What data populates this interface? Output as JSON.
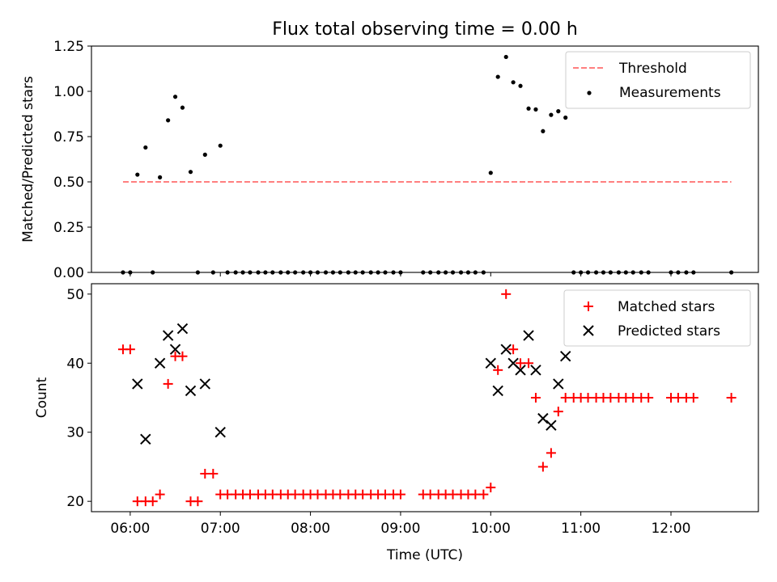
{
  "chart_data": [
    {
      "type": "scatter",
      "title": "Flux total observing time = 0.00 h",
      "ylabel": "Matched/Predicted stars",
      "xlabel": "",
      "xlim": [
        5.57,
        12.97
      ],
      "ylim": [
        0,
        1.25
      ],
      "x_ticks": [
        6,
        7,
        8,
        9,
        10,
        11,
        12
      ],
      "y_ticks": [
        0,
        0.25,
        0.5,
        0.75,
        1.0,
        1.25
      ],
      "y_tick_labels": [
        "0.00",
        "0.25",
        "0.50",
        "0.75",
        "1.00",
        "1.25"
      ],
      "legend_position": "top-right",
      "grid": false,
      "threshold": {
        "name": "Threshold",
        "y": 0.5,
        "x_range": [
          5.92,
          12.67
        ],
        "color": "#ff7f7f"
      },
      "measurements_name": "Measurements",
      "measurement_color": "#000000",
      "nonzero_points": [
        {
          "x": 6.08,
          "y": 0.54
        },
        {
          "x": 6.17,
          "y": 0.69
        },
        {
          "x": 6.33,
          "y": 0.525
        },
        {
          "x": 6.42,
          "y": 0.84
        },
        {
          "x": 6.5,
          "y": 0.97
        },
        {
          "x": 6.58,
          "y": 0.91
        },
        {
          "x": 6.67,
          "y": 0.555
        },
        {
          "x": 6.83,
          "y": 0.65
        },
        {
          "x": 7.0,
          "y": 0.7
        },
        {
          "x": 10.0,
          "y": 0.55
        },
        {
          "x": 10.08,
          "y": 1.08
        },
        {
          "x": 10.17,
          "y": 1.19
        },
        {
          "x": 10.25,
          "y": 1.05
        },
        {
          "x": 10.33,
          "y": 1.03
        },
        {
          "x": 10.42,
          "y": 0.905
        },
        {
          "x": 10.5,
          "y": 0.9
        },
        {
          "x": 10.58,
          "y": 0.78
        },
        {
          "x": 10.67,
          "y": 0.87
        },
        {
          "x": 10.75,
          "y": 0.89
        },
        {
          "x": 10.83,
          "y": 0.855
        }
      ],
      "zero_x": [
        5.92,
        6.0,
        6.25,
        6.75,
        6.92,
        7.08,
        7.17,
        7.25,
        7.33,
        7.42,
        7.5,
        7.58,
        7.67,
        7.75,
        7.83,
        7.92,
        8.0,
        8.08,
        8.17,
        8.25,
        8.33,
        8.42,
        8.5,
        8.58,
        8.67,
        8.75,
        8.83,
        8.92,
        9.0,
        9.25,
        9.33,
        9.42,
        9.5,
        9.58,
        9.67,
        9.75,
        9.83,
        9.92,
        10.92,
        11.0,
        11.08,
        11.17,
        11.25,
        11.33,
        11.42,
        11.5,
        11.58,
        11.67,
        11.75,
        12.0,
        12.08,
        12.17,
        12.25,
        12.67
      ]
    },
    {
      "type": "scatter",
      "xlabel": "Time (UTC)",
      "ylabel": "Count",
      "xlim": [
        5.57,
        12.97
      ],
      "ylim": [
        18.5,
        51.5
      ],
      "x_ticks": [
        6,
        7,
        8,
        9,
        10,
        11,
        12
      ],
      "x_tick_labels": [
        "06:00",
        "07:00",
        "08:00",
        "09:00",
        "10:00",
        "11:00",
        "12:00"
      ],
      "y_ticks": [
        20,
        30,
        40,
        50
      ],
      "legend_position": "top-right",
      "grid": false,
      "series": [
        {
          "name": "Matched stars",
          "marker": "plus",
          "color": "#ff0000",
          "points": [
            {
              "x": 5.92,
              "y": 42
            },
            {
              "x": 6.0,
              "y": 42
            },
            {
              "x": 6.08,
              "y": 20
            },
            {
              "x": 6.17,
              "y": 20
            },
            {
              "x": 6.25,
              "y": 20
            },
            {
              "x": 6.33,
              "y": 21
            },
            {
              "x": 6.42,
              "y": 37
            },
            {
              "x": 6.5,
              "y": 41
            },
            {
              "x": 6.58,
              "y": 41
            },
            {
              "x": 6.67,
              "y": 20
            },
            {
              "x": 6.75,
              "y": 20
            },
            {
              "x": 6.83,
              "y": 24
            },
            {
              "x": 6.92,
              "y": 24
            },
            {
              "x": 7.0,
              "y": 21
            },
            {
              "x": 7.08,
              "y": 21
            },
            {
              "x": 7.17,
              "y": 21
            },
            {
              "x": 7.25,
              "y": 21
            },
            {
              "x": 7.33,
              "y": 21
            },
            {
              "x": 7.42,
              "y": 21
            },
            {
              "x": 7.5,
              "y": 21
            },
            {
              "x": 7.58,
              "y": 21
            },
            {
              "x": 7.67,
              "y": 21
            },
            {
              "x": 7.75,
              "y": 21
            },
            {
              "x": 7.83,
              "y": 21
            },
            {
              "x": 7.92,
              "y": 21
            },
            {
              "x": 8.0,
              "y": 21
            },
            {
              "x": 8.08,
              "y": 21
            },
            {
              "x": 8.17,
              "y": 21
            },
            {
              "x": 8.25,
              "y": 21
            },
            {
              "x": 8.33,
              "y": 21
            },
            {
              "x": 8.42,
              "y": 21
            },
            {
              "x": 8.5,
              "y": 21
            },
            {
              "x": 8.58,
              "y": 21
            },
            {
              "x": 8.67,
              "y": 21
            },
            {
              "x": 8.75,
              "y": 21
            },
            {
              "x": 8.83,
              "y": 21
            },
            {
              "x": 8.92,
              "y": 21
            },
            {
              "x": 9.0,
              "y": 21
            },
            {
              "x": 9.25,
              "y": 21
            },
            {
              "x": 9.33,
              "y": 21
            },
            {
              "x": 9.42,
              "y": 21
            },
            {
              "x": 9.5,
              "y": 21
            },
            {
              "x": 9.58,
              "y": 21
            },
            {
              "x": 9.67,
              "y": 21
            },
            {
              "x": 9.75,
              "y": 21
            },
            {
              "x": 9.83,
              "y": 21
            },
            {
              "x": 9.92,
              "y": 21
            },
            {
              "x": 10.0,
              "y": 22
            },
            {
              "x": 10.08,
              "y": 39
            },
            {
              "x": 10.17,
              "y": 50
            },
            {
              "x": 10.25,
              "y": 42
            },
            {
              "x": 10.33,
              "y": 40
            },
            {
              "x": 10.42,
              "y": 40
            },
            {
              "x": 10.5,
              "y": 35
            },
            {
              "x": 10.58,
              "y": 25
            },
            {
              "x": 10.67,
              "y": 27
            },
            {
              "x": 10.75,
              "y": 33
            },
            {
              "x": 10.83,
              "y": 35
            },
            {
              "x": 10.92,
              "y": 35
            },
            {
              "x": 11.0,
              "y": 35
            },
            {
              "x": 11.08,
              "y": 35
            },
            {
              "x": 11.17,
              "y": 35
            },
            {
              "x": 11.25,
              "y": 35
            },
            {
              "x": 11.33,
              "y": 35
            },
            {
              "x": 11.42,
              "y": 35
            },
            {
              "x": 11.5,
              "y": 35
            },
            {
              "x": 11.58,
              "y": 35
            },
            {
              "x": 11.67,
              "y": 35
            },
            {
              "x": 11.75,
              "y": 35
            },
            {
              "x": 12.0,
              "y": 35
            },
            {
              "x": 12.08,
              "y": 35
            },
            {
              "x": 12.17,
              "y": 35
            },
            {
              "x": 12.25,
              "y": 35
            },
            {
              "x": 12.67,
              "y": 35
            }
          ]
        },
        {
          "name": "Predicted stars",
          "marker": "x",
          "color": "#000000",
          "points": [
            {
              "x": 6.08,
              "y": 37
            },
            {
              "x": 6.17,
              "y": 29
            },
            {
              "x": 6.33,
              "y": 40
            },
            {
              "x": 6.42,
              "y": 44
            },
            {
              "x": 6.5,
              "y": 42
            },
            {
              "x": 6.58,
              "y": 45
            },
            {
              "x": 6.67,
              "y": 36
            },
            {
              "x": 6.83,
              "y": 37
            },
            {
              "x": 7.0,
              "y": 30
            },
            {
              "x": 10.0,
              "y": 40
            },
            {
              "x": 10.08,
              "y": 36
            },
            {
              "x": 10.17,
              "y": 42
            },
            {
              "x": 10.25,
              "y": 40
            },
            {
              "x": 10.33,
              "y": 39
            },
            {
              "x": 10.42,
              "y": 44
            },
            {
              "x": 10.5,
              "y": 39
            },
            {
              "x": 10.58,
              "y": 32
            },
            {
              "x": 10.67,
              "y": 31
            },
            {
              "x": 10.75,
              "y": 37
            },
            {
              "x": 10.83,
              "y": 41
            }
          ]
        }
      ]
    }
  ]
}
